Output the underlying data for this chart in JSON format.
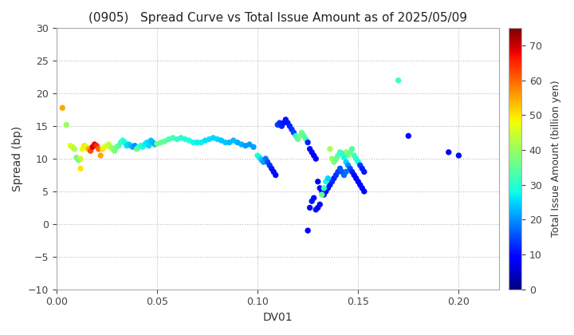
{
  "title": "(0905)   Spread Curve vs Total Issue Amount as of 2025/05/09",
  "xlabel": "DV01",
  "ylabel": "Spread (bp)",
  "colorbar_label": "Total Issue Amount (billion yen)",
  "xlim": [
    0.0,
    0.22
  ],
  "ylim": [
    -10,
    30
  ],
  "xticks": [
    0.0,
    0.05,
    0.1,
    0.15,
    0.2
  ],
  "yticks": [
    -10,
    -5,
    0,
    5,
    10,
    15,
    20,
    25,
    30
  ],
  "color_min": 0,
  "color_max": 75,
  "colorbar_ticks": [
    0,
    10,
    20,
    30,
    40,
    50,
    60,
    70
  ],
  "background_color": "#ffffff",
  "grid_color": "#bbbbbb",
  "marker_size": 28,
  "points": [
    [
      0.003,
      17.8,
      55
    ],
    [
      0.005,
      15.2,
      40
    ],
    [
      0.007,
      12.0,
      47
    ],
    [
      0.008,
      11.8,
      44
    ],
    [
      0.009,
      11.5,
      42
    ],
    [
      0.01,
      10.2,
      38
    ],
    [
      0.011,
      9.8,
      35
    ],
    [
      0.012,
      8.5,
      50
    ],
    [
      0.012,
      10.0,
      45
    ],
    [
      0.013,
      11.5,
      48
    ],
    [
      0.014,
      12.0,
      50
    ],
    [
      0.015,
      11.8,
      47
    ],
    [
      0.016,
      11.5,
      55
    ],
    [
      0.017,
      11.2,
      62
    ],
    [
      0.018,
      11.8,
      70
    ],
    [
      0.019,
      12.2,
      68
    ],
    [
      0.02,
      12.0,
      65
    ],
    [
      0.021,
      11.5,
      60
    ],
    [
      0.022,
      10.5,
      55
    ],
    [
      0.023,
      11.5,
      50
    ],
    [
      0.024,
      11.8,
      48
    ],
    [
      0.025,
      12.0,
      46
    ],
    [
      0.026,
      12.2,
      44
    ],
    [
      0.027,
      11.8,
      42
    ],
    [
      0.028,
      11.5,
      40
    ],
    [
      0.029,
      11.2,
      38
    ],
    [
      0.03,
      11.8,
      36
    ],
    [
      0.031,
      12.0,
      34
    ],
    [
      0.032,
      12.5,
      32
    ],
    [
      0.033,
      12.8,
      30
    ],
    [
      0.034,
      12.5,
      28
    ],
    [
      0.035,
      12.0,
      26
    ],
    [
      0.036,
      12.2,
      25
    ],
    [
      0.037,
      12.0,
      24
    ],
    [
      0.038,
      11.8,
      22
    ],
    [
      0.039,
      12.0,
      20
    ],
    [
      0.04,
      11.5,
      35
    ],
    [
      0.041,
      11.8,
      33
    ],
    [
      0.042,
      12.0,
      31
    ],
    [
      0.043,
      11.8,
      29
    ],
    [
      0.044,
      12.2,
      27
    ],
    [
      0.045,
      12.5,
      26
    ],
    [
      0.046,
      12.0,
      25
    ],
    [
      0.047,
      12.8,
      24
    ],
    [
      0.048,
      12.5,
      23
    ],
    [
      0.049,
      12.2,
      22
    ],
    [
      0.05,
      12.3,
      36
    ],
    [
      0.052,
      12.5,
      35
    ],
    [
      0.054,
      12.7,
      34
    ],
    [
      0.056,
      13.0,
      33
    ],
    [
      0.058,
      13.2,
      32
    ],
    [
      0.06,
      13.0,
      31
    ],
    [
      0.062,
      13.2,
      30
    ],
    [
      0.064,
      13.0,
      30
    ],
    [
      0.066,
      12.8,
      29
    ],
    [
      0.068,
      12.5,
      28
    ],
    [
      0.07,
      12.5,
      27
    ],
    [
      0.072,
      12.5,
      27
    ],
    [
      0.074,
      12.8,
      26
    ],
    [
      0.076,
      13.0,
      26
    ],
    [
      0.078,
      13.2,
      25
    ],
    [
      0.08,
      13.0,
      25
    ],
    [
      0.082,
      12.8,
      24
    ],
    [
      0.084,
      12.5,
      24
    ],
    [
      0.086,
      12.5,
      23
    ],
    [
      0.088,
      12.8,
      23
    ],
    [
      0.09,
      12.5,
      22
    ],
    [
      0.092,
      12.2,
      22
    ],
    [
      0.094,
      12.0,
      21
    ],
    [
      0.096,
      12.2,
      21
    ],
    [
      0.098,
      11.8,
      21
    ],
    [
      0.1,
      10.5,
      30
    ],
    [
      0.101,
      10.2,
      27
    ],
    [
      0.102,
      9.8,
      24
    ],
    [
      0.103,
      9.5,
      21
    ],
    [
      0.104,
      10.0,
      18
    ],
    [
      0.105,
      9.5,
      15
    ],
    [
      0.106,
      9.0,
      13
    ],
    [
      0.107,
      8.5,
      11
    ],
    [
      0.108,
      8.0,
      10
    ],
    [
      0.109,
      7.5,
      10
    ],
    [
      0.11,
      15.2,
      14
    ],
    [
      0.111,
      15.5,
      13
    ],
    [
      0.112,
      15.0,
      12
    ],
    [
      0.113,
      15.5,
      11
    ],
    [
      0.114,
      16.0,
      11
    ],
    [
      0.115,
      15.5,
      11
    ],
    [
      0.116,
      15.0,
      12
    ],
    [
      0.117,
      14.5,
      13
    ],
    [
      0.118,
      14.0,
      14
    ],
    [
      0.119,
      13.5,
      30
    ],
    [
      0.12,
      13.0,
      35
    ],
    [
      0.121,
      13.5,
      38
    ],
    [
      0.122,
      14.0,
      36
    ],
    [
      0.123,
      13.5,
      34
    ],
    [
      0.124,
      13.0,
      32
    ],
    [
      0.125,
      12.5,
      12
    ],
    [
      0.126,
      11.5,
      10
    ],
    [
      0.127,
      11.0,
      10
    ],
    [
      0.128,
      10.5,
      9
    ],
    [
      0.129,
      10.0,
      9
    ],
    [
      0.13,
      6.5,
      9
    ],
    [
      0.131,
      5.5,
      9
    ],
    [
      0.132,
      5.0,
      10
    ],
    [
      0.133,
      4.5,
      10
    ],
    [
      0.134,
      5.0,
      10
    ],
    [
      0.135,
      5.5,
      11
    ],
    [
      0.136,
      6.0,
      11
    ],
    [
      0.137,
      6.5,
      12
    ],
    [
      0.138,
      7.0,
      12
    ],
    [
      0.139,
      7.5,
      13
    ],
    [
      0.14,
      8.0,
      14
    ],
    [
      0.141,
      8.5,
      15
    ],
    [
      0.142,
      8.0,
      16
    ],
    [
      0.143,
      7.5,
      17
    ],
    [
      0.144,
      8.0,
      18
    ],
    [
      0.144,
      11.0,
      40
    ],
    [
      0.145,
      10.5,
      38
    ],
    [
      0.146,
      11.0,
      36
    ],
    [
      0.147,
      11.5,
      34
    ],
    [
      0.148,
      10.5,
      32
    ],
    [
      0.149,
      10.0,
      30
    ],
    [
      0.15,
      9.5,
      28
    ],
    [
      0.151,
      9.0,
      14
    ],
    [
      0.152,
      8.5,
      12
    ],
    [
      0.153,
      8.0,
      11
    ],
    [
      0.125,
      -1.0,
      9
    ],
    [
      0.126,
      2.5,
      10
    ],
    [
      0.127,
      3.5,
      11
    ],
    [
      0.128,
      4.0,
      10
    ],
    [
      0.129,
      2.2,
      11
    ],
    [
      0.13,
      2.5,
      9
    ],
    [
      0.131,
      3.0,
      10
    ],
    [
      0.132,
      4.5,
      35
    ],
    [
      0.133,
      5.5,
      32
    ],
    [
      0.134,
      6.5,
      28
    ],
    [
      0.135,
      7.0,
      25
    ],
    [
      0.136,
      11.5,
      42
    ],
    [
      0.137,
      10.0,
      40
    ],
    [
      0.138,
      9.5,
      38
    ],
    [
      0.139,
      10.0,
      36
    ],
    [
      0.14,
      10.5,
      34
    ],
    [
      0.141,
      11.0,
      32
    ],
    [
      0.142,
      10.8,
      30
    ],
    [
      0.143,
      10.2,
      28
    ],
    [
      0.144,
      9.5,
      25
    ],
    [
      0.145,
      9.0,
      20
    ],
    [
      0.146,
      8.5,
      15
    ],
    [
      0.147,
      8.0,
      12
    ],
    [
      0.148,
      7.5,
      10
    ],
    [
      0.149,
      7.0,
      9
    ],
    [
      0.15,
      6.5,
      9
    ],
    [
      0.151,
      6.0,
      9
    ],
    [
      0.152,
      5.5,
      9
    ],
    [
      0.153,
      5.0,
      9
    ],
    [
      0.17,
      22.0,
      32
    ],
    [
      0.175,
      13.5,
      10
    ],
    [
      0.195,
      11.0,
      9
    ],
    [
      0.2,
      10.5,
      10
    ]
  ]
}
